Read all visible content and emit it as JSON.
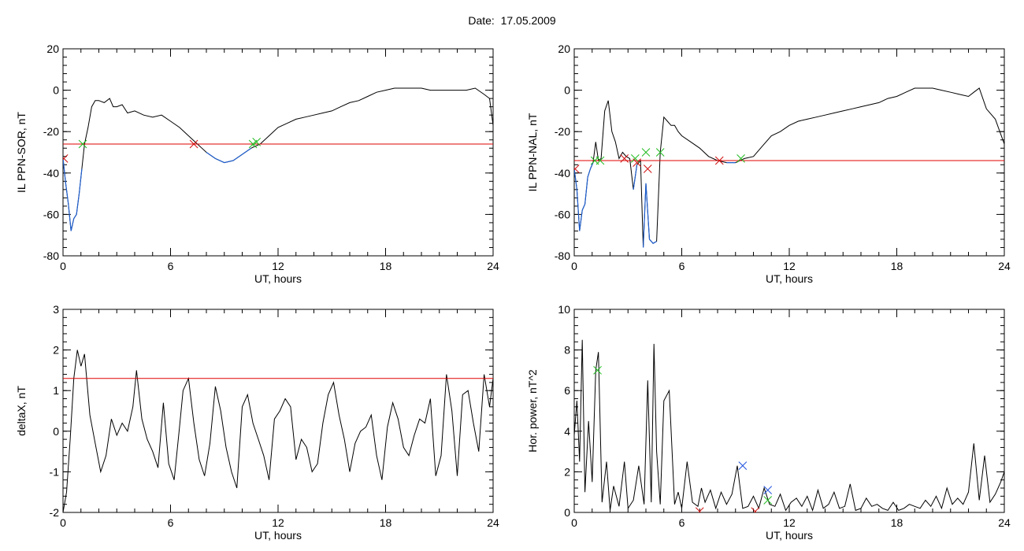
{
  "header": {
    "date_label": "Date:",
    "date_value": "17.05.2009"
  },
  "colors": {
    "trace": "#000000",
    "highlight_trace": "#1f5fcf",
    "threshold": "#e00000",
    "marker_red": "#d01010",
    "marker_green": "#22bb22",
    "marker_blue": "#2255dd"
  },
  "chart_data": [
    {
      "id": "ppn-sor",
      "type": "line",
      "title": "",
      "xlabel": "UT, hours",
      "ylabel": "IL PPN-SOR, nT",
      "xlim": [
        0,
        24
      ],
      "ylim": [
        -80,
        20
      ],
      "xticks": [
        0,
        6,
        12,
        18,
        24
      ],
      "yticks": [
        20,
        0,
        -20,
        -40,
        -60,
        -80
      ],
      "threshold": -26,
      "series": [
        {
          "x": [
            0,
            0.15,
            0.3,
            0.45,
            0.6,
            0.75,
            0.9,
            1.05,
            1.2,
            1.4,
            1.6,
            1.8,
            2.0,
            2.3,
            2.6,
            2.8,
            3.0,
            3.3,
            3.6,
            4.0,
            4.5,
            5.0,
            5.5,
            6.0,
            6.5,
            7.0,
            7.5,
            8.0,
            8.5,
            9.0,
            9.5,
            10.0,
            10.5,
            11.0,
            11.5,
            12.0,
            12.5,
            13.0,
            13.5,
            14.0,
            14.5,
            15.0,
            15.5,
            16.0,
            16.5,
            17.0,
            17.5,
            18.0,
            18.5,
            19.0,
            19.5,
            20.0,
            20.5,
            21.0,
            21.5,
            22.0,
            22.5,
            23.0,
            23.5,
            23.8,
            24.0
          ],
          "y": [
            -33,
            -45,
            -55,
            -68,
            -62,
            -60,
            -50,
            -38,
            -26,
            -18,
            -8,
            -5,
            -5,
            -6,
            -4,
            -8,
            -8,
            -7,
            -11,
            -10,
            -12,
            -13,
            -12,
            -15,
            -18,
            -22,
            -26,
            -30,
            -33,
            -35,
            -34,
            -31,
            -28,
            -26,
            -22,
            -18,
            -16,
            -14,
            -13,
            -12,
            -11,
            -10,
            -8,
            -6,
            -5,
            -3,
            -1,
            0,
            1,
            1,
            1,
            1,
            0,
            0,
            0,
            0,
            0,
            1,
            -2,
            -4,
            -17
          ]
        }
      ],
      "markers": [
        {
          "x": 0.05,
          "y": -33,
          "color": "red"
        },
        {
          "x": 1.1,
          "y": -26,
          "color": "green"
        },
        {
          "x": 7.3,
          "y": -26,
          "color": "red"
        },
        {
          "x": 10.6,
          "y": -26,
          "color": "green"
        },
        {
          "x": 10.8,
          "y": -25,
          "color": "green"
        }
      ],
      "below_threshold_color": "blue"
    },
    {
      "id": "ppn-nal",
      "type": "line",
      "title": "",
      "xlabel": "UT, hours",
      "ylabel": "IL PPN-NAL, nT",
      "xlim": [
        0,
        24
      ],
      "ylim": [
        -80,
        20
      ],
      "xticks": [
        0,
        6,
        12,
        18,
        24
      ],
      "yticks": [
        20,
        0,
        -20,
        -40,
        -60,
        -80
      ],
      "threshold": -34,
      "series": [
        {
          "x": [
            0,
            0.15,
            0.3,
            0.45,
            0.6,
            0.75,
            0.9,
            1.05,
            1.2,
            1.35,
            1.5,
            1.7,
            1.9,
            2.1,
            2.3,
            2.5,
            2.7,
            2.9,
            3.1,
            3.3,
            3.5,
            3.7,
            3.85,
            4.0,
            4.2,
            4.4,
            4.6,
            4.8,
            5.0,
            5.2,
            5.4,
            5.6,
            5.8,
            6.0,
            6.5,
            7.0,
            7.5,
            8.0,
            8.5,
            9.0,
            9.5,
            10.0,
            10.5,
            11.0,
            11.5,
            12.0,
            12.5,
            13.0,
            13.5,
            14.0,
            14.5,
            15.0,
            15.5,
            16.0,
            16.5,
            17.0,
            17.5,
            18.0,
            18.5,
            19.0,
            19.5,
            20.0,
            20.5,
            21.0,
            21.5,
            22.0,
            22.3,
            22.6,
            23.0,
            23.5,
            24.0
          ],
          "y": [
            -38,
            -48,
            -68,
            -58,
            -55,
            -42,
            -38,
            -35,
            -25,
            -34,
            -33,
            -10,
            -5,
            -20,
            -25,
            -33,
            -30,
            -32,
            -33,
            -48,
            -36,
            -34,
            -76,
            -45,
            -72,
            -74,
            -73,
            -30,
            -13,
            -15,
            -17,
            -17,
            -20,
            -22,
            -25,
            -28,
            -32,
            -34,
            -35,
            -35,
            -33,
            -32,
            -27,
            -22,
            -20,
            -17,
            -15,
            -14,
            -13,
            -12,
            -11,
            -10,
            -9,
            -8,
            -7,
            -6,
            -4,
            -3,
            -1,
            1,
            1,
            1,
            0,
            -1,
            -2,
            -3,
            -1,
            1,
            -9,
            -14,
            -26
          ]
        }
      ],
      "markers": [
        {
          "x": 0.05,
          "y": -38,
          "color": "red"
        },
        {
          "x": 1.15,
          "y": -34,
          "color": "green"
        },
        {
          "x": 1.45,
          "y": -34,
          "color": "green"
        },
        {
          "x": 2.8,
          "y": -33,
          "color": "red"
        },
        {
          "x": 3.4,
          "y": -33,
          "color": "green"
        },
        {
          "x": 3.5,
          "y": -35,
          "color": "red"
        },
        {
          "x": 4.0,
          "y": -30,
          "color": "green"
        },
        {
          "x": 4.1,
          "y": -38,
          "color": "red"
        },
        {
          "x": 4.8,
          "y": -30,
          "color": "green"
        },
        {
          "x": 8.1,
          "y": -34,
          "color": "red"
        },
        {
          "x": 9.3,
          "y": -33,
          "color": "green"
        }
      ],
      "below_threshold_color": "blue"
    },
    {
      "id": "deltax",
      "type": "line",
      "title": "",
      "xlabel": "UT, hours",
      "ylabel": "deltaX, nT",
      "xlim": [
        0,
        24
      ],
      "ylim": [
        -2,
        3
      ],
      "xticks": [
        0,
        6,
        12,
        18,
        24
      ],
      "yticks": [
        3,
        2,
        1,
        0,
        -1,
        -2
      ],
      "threshold": 1.3,
      "series": [
        {
          "x": [
            0,
            0.2,
            0.4,
            0.6,
            0.8,
            1.0,
            1.2,
            1.5,
            1.8,
            2.1,
            2.4,
            2.7,
            3.0,
            3.3,
            3.6,
            3.9,
            4.1,
            4.4,
            4.7,
            5.0,
            5.3,
            5.6,
            5.9,
            6.2,
            6.5,
            6.7,
            7.0,
            7.3,
            7.6,
            7.9,
            8.2,
            8.5,
            8.8,
            9.1,
            9.4,
            9.7,
            10.0,
            10.3,
            10.6,
            10.9,
            11.2,
            11.5,
            11.8,
            12.1,
            12.4,
            12.7,
            13.0,
            13.3,
            13.6,
            13.9,
            14.2,
            14.5,
            14.8,
            15.1,
            15.4,
            15.7,
            16.0,
            16.3,
            16.6,
            16.9,
            17.2,
            17.5,
            17.8,
            18.1,
            18.4,
            18.7,
            19.0,
            19.3,
            19.6,
            19.9,
            20.2,
            20.5,
            20.8,
            21.1,
            21.4,
            21.7,
            22.0,
            22.3,
            22.6,
            22.9,
            23.2,
            23.5,
            23.8,
            24.0
          ],
          "y": [
            -2.0,
            -1.5,
            -0.2,
            1.3,
            2.0,
            1.6,
            1.9,
            0.4,
            -0.3,
            -1.0,
            -0.6,
            0.3,
            -0.1,
            0.2,
            0.0,
            0.6,
            1.5,
            0.3,
            -0.2,
            -0.5,
            -0.9,
            0.7,
            -0.8,
            -1.2,
            0.1,
            1.0,
            1.3,
            0.2,
            -0.7,
            -1.1,
            -0.3,
            1.1,
            0.5,
            -0.4,
            -1.0,
            -1.4,
            0.6,
            0.9,
            0.2,
            -0.2,
            -0.6,
            -1.2,
            0.3,
            0.5,
            0.8,
            0.6,
            -0.7,
            -0.2,
            -0.4,
            -1.0,
            -0.8,
            0.2,
            0.9,
            1.2,
            0.4,
            -0.2,
            -1.0,
            -0.3,
            0.0,
            0.1,
            0.4,
            -0.6,
            -1.2,
            0.1,
            0.7,
            0.3,
            -0.4,
            -0.6,
            -0.1,
            0.3,
            0.2,
            0.8,
            -1.1,
            -0.6,
            1.4,
            0.5,
            -1.1,
            0.9,
            1.0,
            0.2,
            -0.5,
            1.4,
            0.6,
            1.3
          ]
        }
      ],
      "markers": []
    },
    {
      "id": "hor-power",
      "type": "line",
      "title": "",
      "xlabel": "UT, hours",
      "ylabel": "Hor. power, nT^2",
      "xlim": [
        0,
        24
      ],
      "ylim": [
        0,
        10
      ],
      "xticks": [
        0,
        6,
        12,
        18,
        24
      ],
      "yticks": [
        10,
        8,
        6,
        4,
        2,
        0
      ],
      "series": [
        {
          "x": [
            0,
            0.15,
            0.3,
            0.45,
            0.6,
            0.8,
            1.0,
            1.2,
            1.35,
            1.55,
            1.8,
            2.0,
            2.2,
            2.5,
            2.8,
            3.0,
            3.3,
            3.6,
            3.9,
            4.1,
            4.3,
            4.45,
            4.6,
            4.8,
            5.0,
            5.3,
            5.6,
            5.8,
            6.0,
            6.3,
            6.6,
            6.9,
            7.1,
            7.3,
            7.6,
            7.9,
            8.2,
            8.5,
            8.8,
            9.1,
            9.4,
            9.7,
            10.0,
            10.3,
            10.6,
            10.9,
            11.2,
            11.5,
            11.8,
            12.1,
            12.4,
            12.7,
            13.0,
            13.3,
            13.6,
            13.9,
            14.2,
            14.5,
            14.8,
            15.1,
            15.4,
            15.7,
            16.0,
            16.3,
            16.6,
            16.9,
            17.2,
            17.5,
            17.8,
            18.1,
            18.4,
            18.7,
            19.0,
            19.3,
            19.6,
            19.9,
            20.2,
            20.5,
            20.8,
            21.1,
            21.4,
            21.7,
            22.0,
            22.3,
            22.6,
            22.9,
            23.2,
            23.5,
            23.8,
            24.0
          ],
          "y": [
            3.8,
            5.5,
            2.5,
            8.5,
            1.0,
            4.5,
            1.5,
            7.0,
            7.9,
            0.5,
            2.5,
            0.1,
            1.3,
            0.3,
            2.5,
            0.2,
            0.6,
            2.3,
            0.4,
            6.5,
            0.5,
            8.3,
            3.0,
            0.4,
            5.5,
            6.0,
            0.4,
            1.0,
            0.2,
            2.5,
            0.5,
            0.3,
            1.2,
            0.5,
            1.1,
            0.2,
            1.0,
            0.4,
            0.9,
            2.3,
            0.2,
            0.3,
            0.8,
            0.2,
            1.2,
            0.4,
            0.3,
            0.9,
            0.1,
            0.5,
            0.7,
            0.3,
            0.8,
            0.1,
            1.1,
            0.2,
            0.4,
            1.0,
            0.2,
            0.3,
            1.4,
            0.1,
            0.2,
            0.7,
            0.3,
            0.4,
            0.2,
            0.1,
            0.5,
            0.1,
            0.2,
            0.4,
            0.3,
            0.2,
            0.6,
            0.3,
            0.8,
            0.2,
            1.2,
            0.4,
            0.7,
            0.4,
            1.0,
            3.4,
            0.6,
            2.8,
            0.5,
            0.9,
            1.5,
            2.0
          ]
        }
      ],
      "markers": [
        {
          "x": 1.3,
          "y": 7.0,
          "color": "green"
        },
        {
          "x": 7.0,
          "y": 0.05,
          "color": "red"
        },
        {
          "x": 9.4,
          "y": 2.3,
          "color": "blue"
        },
        {
          "x": 10.1,
          "y": 0.05,
          "color": "red"
        },
        {
          "x": 10.8,
          "y": 1.1,
          "color": "blue"
        },
        {
          "x": 10.8,
          "y": 0.6,
          "color": "green"
        }
      ]
    }
  ]
}
